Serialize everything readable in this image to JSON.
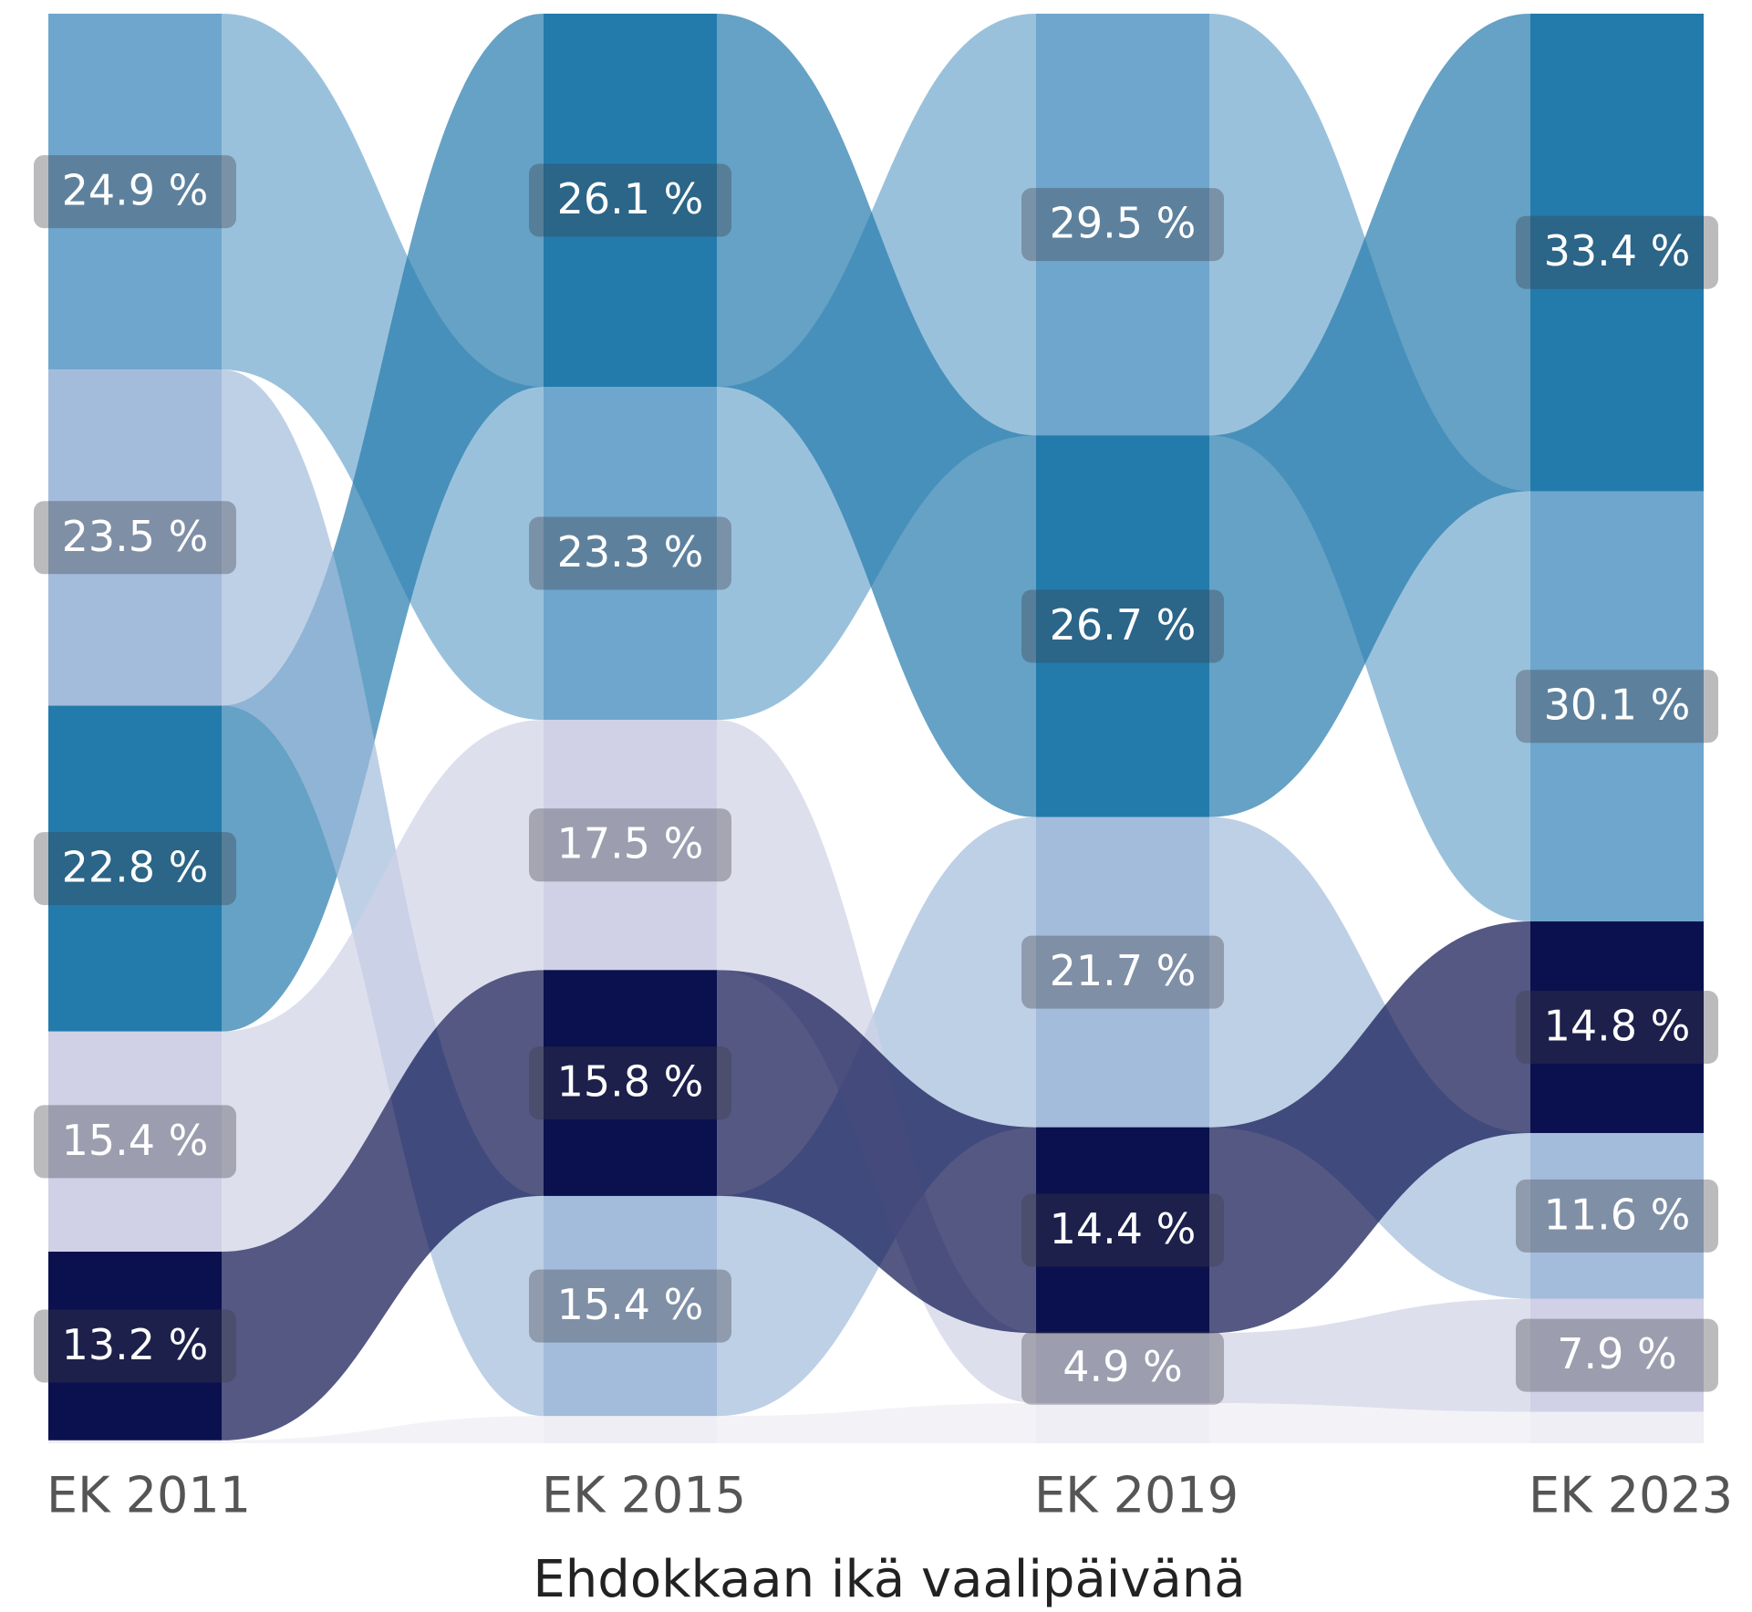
{
  "chart_data": {
    "type": "ribbon",
    "x_label": "Ehdokkaan ikä vaalipäivänä",
    "categories": [
      "EK 2011",
      "EK 2015",
      "EK 2019",
      "EK 2023"
    ],
    "ylim": [
      0,
      100
    ],
    "series": [
      {
        "color": "#6fa6cd",
        "values": [
          24.9,
          23.3,
          29.5,
          30.1
        ],
        "value_labels": [
          "24.9 %",
          "23.3 %",
          "29.5 %",
          "30.1 %"
        ]
      },
      {
        "color": "#237bac",
        "values": [
          22.8,
          26.1,
          26.7,
          33.4
        ],
        "value_labels": [
          "22.8 %",
          "26.1 %",
          "26.7 %",
          "33.4 %"
        ]
      },
      {
        "color": "#a3bcdb",
        "values": [
          23.5,
          15.4,
          21.7,
          11.6
        ],
        "value_labels": [
          "23.5 %",
          "15.4 %",
          "21.7 %",
          "11.6 %"
        ]
      },
      {
        "color": "#d0d1e6",
        "values": [
          15.4,
          17.5,
          4.9,
          7.9
        ],
        "value_labels": [
          "15.4 %",
          "17.5 %",
          "4.9 %",
          "7.9 %"
        ]
      },
      {
        "color": "#0b114e",
        "values": [
          13.2,
          15.8,
          14.4,
          14.8
        ],
        "value_labels": [
          "13.2 %",
          "15.8 %",
          "14.4 %",
          "14.8 %"
        ]
      },
      {
        "color": "#eeeef4",
        "values": [
          0.2,
          1.9,
          2.8,
          2.2
        ]
      }
    ]
  }
}
